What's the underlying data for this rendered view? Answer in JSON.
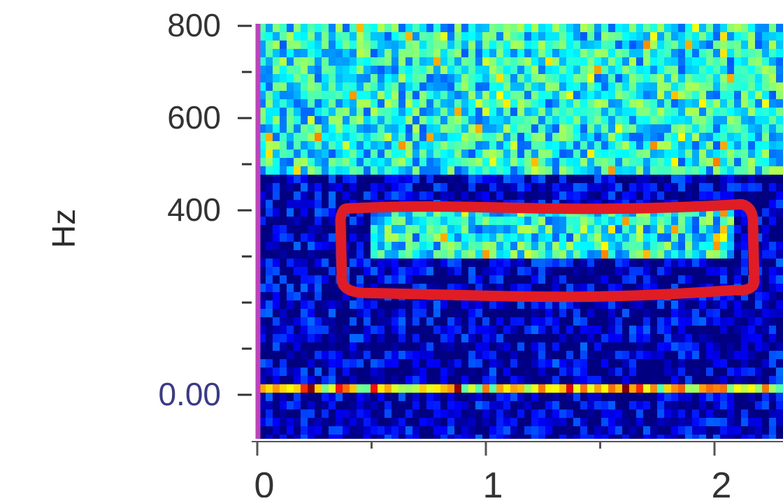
{
  "chart_data": {
    "type": "heatmap",
    "title": "",
    "xlabel": "",
    "ylabel": "Hz",
    "x_ticks": [
      "0",
      "1",
      "2"
    ],
    "y_ticks": [
      "0.00",
      "400",
      "600",
      "800"
    ],
    "y_tick_colors": {
      "0.00": "#3a3a8c",
      "400": "#333333",
      "600": "#333333",
      "800": "#333333"
    },
    "xlim": [
      0,
      2.3
    ],
    "ylim": [
      0,
      860
    ],
    "colormap": "jet",
    "colors": {
      "baseline": "#c040c0",
      "highlight_box": "#e01c24",
      "low": "#00008f",
      "high": "#ffe600"
    },
    "highlight_region": {
      "x": [
        0.37,
        2.15
      ],
      "y": [
        230,
        410
      ]
    },
    "intensity_bands": [
      {
        "y_range": [
          0,
          20
        ],
        "level": "high"
      },
      {
        "y_range": [
          480,
          860
        ],
        "level": "medium"
      },
      {
        "y_range": [
          300,
          400
        ],
        "x_range": [
          0.5,
          2.1
        ],
        "level": "medium"
      }
    ]
  }
}
